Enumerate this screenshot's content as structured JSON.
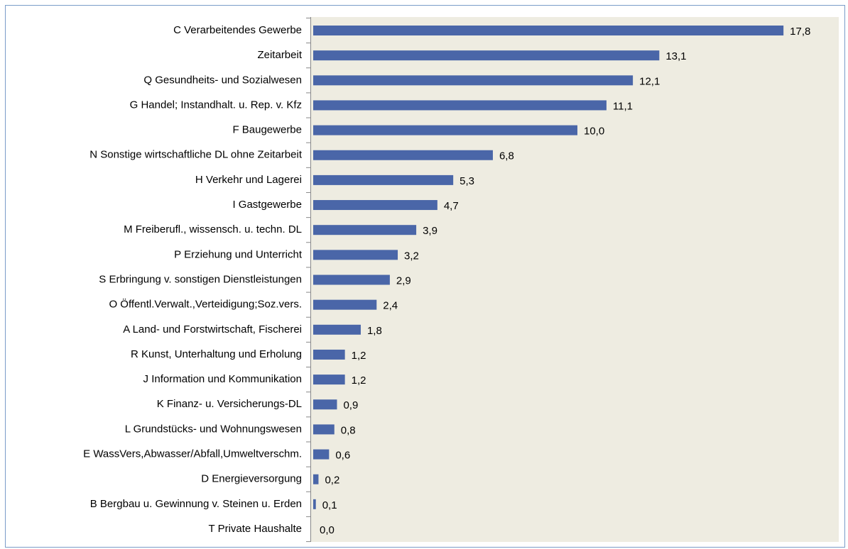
{
  "chart_data": {
    "type": "bar",
    "orientation": "horizontal",
    "color": "#4a66a8",
    "categories": [
      "C Verarbeitendes Gewerbe",
      "Zeitarbeit",
      "Q Gesundheits- und Sozialwesen",
      "G Handel; Instandhalt. u. Rep. v. Kfz",
      "F Baugewerbe",
      "N Sonstige wirtschaftliche DL ohne Zeitarbeit",
      "H Verkehr und Lagerei",
      "I Gastgewerbe",
      "M Freiberufl., wissensch. u. techn. DL",
      "P Erziehung und Unterricht",
      "S Erbringung v. sonstigen Dienstleistungen",
      "O Öffentl.Verwalt.,Verteidigung;Soz.vers.",
      "A Land- und Forstwirtschaft, Fischerei",
      "R Kunst, Unterhaltung und Erholung",
      "J Information und Kommunikation",
      "K Finanz- u. Versicherungs-DL",
      "L Grundstücks- und Wohnungswesen",
      "E WassVers,Abwasser/Abfall,Umweltverschm.",
      "D Energieversorgung",
      "B Bergbau u. Gewinnung v. Steinen u. Erden",
      "T Private Haushalte"
    ],
    "values": [
      17.8,
      13.1,
      12.1,
      11.1,
      10.0,
      6.8,
      5.3,
      4.7,
      3.9,
      3.2,
      2.9,
      2.4,
      1.8,
      1.2,
      1.2,
      0.9,
      0.8,
      0.6,
      0.2,
      0.1,
      0.0
    ],
    "value_labels": [
      "17,8",
      "13,1",
      "12,1",
      "11,1",
      "10,0",
      "6,8",
      "5,3",
      "4,7",
      "3,9",
      "3,2",
      "2,9",
      "2,4",
      "1,8",
      "1,2",
      "1,2",
      "0,9",
      "0,8",
      "0,6",
      "0,2",
      "0,1",
      "0,0"
    ]
  }
}
